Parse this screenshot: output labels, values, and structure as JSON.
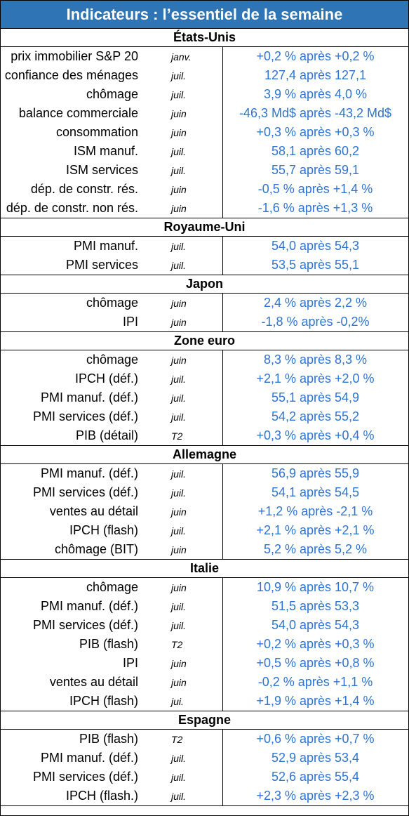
{
  "title": "Indicateurs : l’essentiel de la semaine",
  "colors": {
    "title_bg": "#2f75b5",
    "title_text": "#ffffff",
    "value_text": "#2e74d0"
  },
  "sections": [
    {
      "name": "États-Unis",
      "rows": [
        {
          "indicator": "prix immobilier S&P 20",
          "period": "janv.",
          "value": "+0,2 % après +0,2 %"
        },
        {
          "indicator": "confiance des ménages",
          "period": "juil.",
          "value": "127,4 après 127,1"
        },
        {
          "indicator": "chômage",
          "period": "juil.",
          "value": "3,9 % après 4,0 %"
        },
        {
          "indicator": "balance commerciale",
          "period": "juin",
          "value": "-46,3 Md$ après -43,2 Md$"
        },
        {
          "indicator": "consommation",
          "period": "juin",
          "value": "+0,3 % après +0,3 %"
        },
        {
          "indicator": "ISM manuf.",
          "period": "juil.",
          "value": "58,1 après 60,2"
        },
        {
          "indicator": "ISM services",
          "period": "juil.",
          "value": "55,7 après 59,1"
        },
        {
          "indicator": "dép. de constr. rés.",
          "period": "juin",
          "value": "-0,5 % après +1,4 %"
        },
        {
          "indicator": "dép. de constr. non rés.",
          "period": "juin",
          "value": "-1,6 % après +1,3 %"
        }
      ]
    },
    {
      "name": "Royaume-Uni",
      "rows": [
        {
          "indicator": "PMI manuf.",
          "period": "juil.",
          "value": "54,0 après 54,3"
        },
        {
          "indicator": "PMI services",
          "period": "juil.",
          "value": "53,5 après 55,1"
        }
      ]
    },
    {
      "name": "Japon",
      "rows": [
        {
          "indicator": "chômage",
          "period": "juin",
          "value": "2,4 % après 2,2 %"
        },
        {
          "indicator": "IPI",
          "period": "juin",
          "value": "-1,8 % après -0,2%"
        }
      ]
    },
    {
      "name": "Zone euro",
      "rows": [
        {
          "indicator": "chômage",
          "period": "juin",
          "value": "8,3 % après 8,3 %"
        },
        {
          "indicator": "IPCH (déf.)",
          "period": "juil.",
          "value": "+2,1 % après +2,0 %"
        },
        {
          "indicator": "PMI manuf. (déf.)",
          "period": "juil.",
          "value": "55,1 après 54,9"
        },
        {
          "indicator": "PMI services (déf.)",
          "period": "juil.",
          "value": "54,2 après 55,2"
        },
        {
          "indicator": "PIB (détail)",
          "period": "T2",
          "value": "+0,3 % après +0,4 %"
        }
      ]
    },
    {
      "name": "Allemagne",
      "rows": [
        {
          "indicator": "PMI manuf. (déf.)",
          "period": "juil.",
          "value": "56,9 après 55,9"
        },
        {
          "indicator": "PMI services (déf.)",
          "period": "juil.",
          "value": "54,1 après 54,5"
        },
        {
          "indicator": "ventes au détail",
          "period": "juin",
          "value": "+1,2 % après -2,1 %"
        },
        {
          "indicator": "IPCH (flash)",
          "period": "juil.",
          "value": "+2,1 % après +2,1 %"
        },
        {
          "indicator": "chômage (BIT)",
          "period": "juin",
          "value": "5,2 % après 5,2 %"
        }
      ]
    },
    {
      "name": "Italie",
      "rows": [
        {
          "indicator": "chômage",
          "period": "juin",
          "value": "10,9 % après 10,7 %"
        },
        {
          "indicator": "PMI manuf. (déf.)",
          "period": "juil.",
          "value": "51,5 après 53,3"
        },
        {
          "indicator": "PMI services (déf.)",
          "period": "juil.",
          "value": "54,0 après 54,3"
        },
        {
          "indicator": "PIB (flash)",
          "period": "T2",
          "value": "+0,2 % après +0,3 %"
        },
        {
          "indicator": "IPI",
          "period": "juin",
          "value": "+0,5 % après +0,8 %"
        },
        {
          "indicator": "ventes au détail",
          "period": "juin",
          "value": "-0,2 % après +1,1 %"
        },
        {
          "indicator": "IPCH (flash)",
          "period": "jui.",
          "value": "+1,9 % après +1,4 %"
        }
      ]
    },
    {
      "name": "Espagne",
      "rows": [
        {
          "indicator": "PIB (flash)",
          "period": "T2",
          "value": "+0,6 % après +0,7 %"
        },
        {
          "indicator": "PMI manuf. (déf.)",
          "period": "juil.",
          "value": "52,9 après 53,4"
        },
        {
          "indicator": "PMI services (déf.)",
          "period": "juil.",
          "value": "52,6 après 55,4"
        },
        {
          "indicator": "IPCH (flash.)",
          "period": "juil.",
          "value": "+2,3 % après +2,3 %"
        }
      ]
    }
  ]
}
